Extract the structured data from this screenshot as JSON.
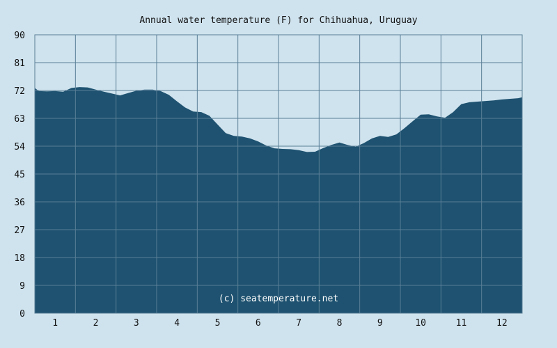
{
  "chart_data": {
    "type": "area",
    "title": "Annual water temperature (F) for Chihuahua, Uruguay",
    "watermark": "(c) seatemperature.net",
    "xlabel": "",
    "ylabel": "",
    "ylim": [
      0,
      90
    ],
    "yticks": [
      0,
      9,
      18,
      27,
      36,
      45,
      54,
      63,
      72,
      81,
      90
    ],
    "xticks": [
      "1",
      "2",
      "3",
      "4",
      "5",
      "6",
      "7",
      "8",
      "9",
      "10",
      "11",
      "12"
    ],
    "grid": true,
    "colors": {
      "background": "#cfe3ee",
      "fill": "#1e5270",
      "grid": "#5a7f97"
    },
    "series": [
      {
        "month": [
          0.0,
          0.1,
          0.3,
          0.5,
          0.7,
          0.9,
          1.1,
          1.3,
          1.5,
          1.7,
          1.9,
          2.1,
          2.3,
          2.5,
          2.7,
          2.9,
          3.1,
          3.3,
          3.5,
          3.7,
          3.9,
          4.1,
          4.3,
          4.5,
          4.7,
          4.9,
          5.1,
          5.3,
          5.5,
          5.7,
          5.9,
          6.1,
          6.3,
          6.5,
          6.7,
          6.9,
          7.1,
          7.3,
          7.5,
          7.7,
          7.9,
          8.1,
          8.3,
          8.5,
          8.7,
          8.9,
          9.1,
          9.3,
          9.5,
          9.7,
          9.9,
          10.1,
          10.3,
          10.5,
          10.7,
          10.9,
          11.1,
          11.3,
          11.5,
          11.7,
          11.9,
          12.0
        ],
        "values": [
          72.8,
          71.8,
          71.7,
          71.8,
          71.6,
          72.8,
          73.1,
          73.0,
          72.3,
          71.6,
          71.0,
          70.4,
          71.2,
          71.9,
          72.3,
          72.3,
          71.8,
          70.6,
          68.5,
          66.5,
          65.2,
          65.0,
          63.8,
          61.0,
          58.2,
          57.3,
          57.1,
          56.5,
          55.5,
          54.2,
          53.3,
          53.1,
          53.0,
          52.7,
          52.1,
          52.2,
          53.4,
          54.4,
          55.2,
          54.4,
          53.8,
          55.0,
          56.5,
          57.3,
          57.0,
          57.8,
          59.8,
          62.0,
          64.2,
          64.3,
          63.6,
          63.2,
          65.0,
          67.6,
          68.2,
          68.4,
          68.6,
          68.8,
          69.1,
          69.3,
          69.5,
          69.8
        ]
      }
    ]
  }
}
